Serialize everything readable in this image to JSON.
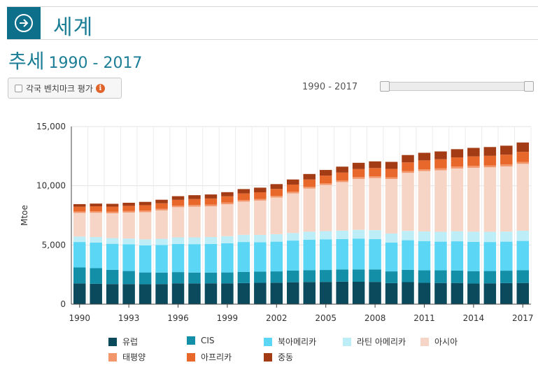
{
  "header": {
    "title": "세계",
    "nav_icon": "arrow-circle-right-icon"
  },
  "subtitle": {
    "main": "추세",
    "range": "1990 - 2017"
  },
  "controls": {
    "benchmark_label": "각국 벤치마크 평가",
    "info_icon": "info-icon",
    "range_label": "1990 - 2017",
    "slider_start": 1990,
    "slider_end": 2017,
    "slider_min": 1990,
    "slider_max": 2017
  },
  "colors": {
    "europe": "#0b4a5c",
    "cis": "#138fa8",
    "north_america": "#5bd6f5",
    "latin_america": "#bdeef8",
    "asia": "#f7d5c6",
    "pacific": "#f2976c",
    "africa": "#e8682c",
    "middle_east": "#a33b14"
  },
  "chart_data": {
    "type": "bar",
    "stacked": true,
    "ylabel": "Mtoe",
    "ylim": [
      0,
      15000
    ],
    "yticks": [
      "0",
      "5,000",
      "10,000",
      "15,000"
    ],
    "xticks": [
      "1990",
      "1993",
      "1996",
      "1999",
      "2002",
      "2005",
      "2008",
      "2011",
      "2014",
      "2017"
    ],
    "categories": [
      "1990",
      "1991",
      "1992",
      "1993",
      "1994",
      "1995",
      "1996",
      "1997",
      "1998",
      "1999",
      "2000",
      "2001",
      "2002",
      "2003",
      "2004",
      "2005",
      "2006",
      "2007",
      "2008",
      "2009",
      "2010",
      "2011",
      "2012",
      "2013",
      "2014",
      "2015",
      "2016",
      "2017"
    ],
    "grid": true,
    "legend_position": "bottom",
    "series": [
      {
        "name": "유럽",
        "color_key": "europe",
        "values": [
          1750,
          1720,
          1700,
          1700,
          1680,
          1700,
          1760,
          1750,
          1760,
          1760,
          1780,
          1800,
          1810,
          1850,
          1870,
          1880,
          1900,
          1890,
          1880,
          1780,
          1860,
          1800,
          1790,
          1790,
          1740,
          1760,
          1780,
          1790
        ]
      },
      {
        "name": "CIS",
        "color_key": "cis",
        "values": [
          1350,
          1320,
          1200,
          1100,
          1000,
          970,
          950,
          920,
          910,
          920,
          950,
          950,
          960,
          990,
          1000,
          1010,
          1030,
          1040,
          1050,
          990,
          1040,
          1060,
          1070,
          1050,
          1050,
          1040,
          1050,
          1080
        ]
      },
      {
        "name": "북아메리카",
        "color_key": "north_america",
        "values": [
          2150,
          2160,
          2200,
          2250,
          2280,
          2320,
          2380,
          2400,
          2410,
          2460,
          2520,
          2480,
          2510,
          2530,
          2580,
          2590,
          2570,
          2610,
          2560,
          2440,
          2500,
          2470,
          2420,
          2470,
          2470,
          2450,
          2450,
          2470
        ]
      },
      {
        "name": "라틴 아메리카",
        "color_key": "latin_america",
        "values": [
          460,
          470,
          480,
          490,
          510,
          530,
          550,
          570,
          590,
          600,
          610,
          620,
          630,
          640,
          670,
          690,
          710,
          740,
          760,
          760,
          790,
          810,
          830,
          850,
          860,
          860,
          850,
          860
        ]
      },
      {
        "name": "아시아",
        "color_key": "asia",
        "values": [
          2000,
          2050,
          2100,
          2200,
          2300,
          2400,
          2550,
          2600,
          2600,
          2700,
          2800,
          2900,
          3100,
          3350,
          3650,
          3900,
          4100,
          4300,
          4400,
          4600,
          4900,
          5100,
          5200,
          5300,
          5400,
          5450,
          5500,
          5650
        ]
      },
      {
        "name": "태평양",
        "color_key": "pacific",
        "values": [
          120,
          125,
          125,
          125,
          130,
          130,
          130,
          135,
          135,
          140,
          140,
          140,
          140,
          140,
          145,
          145,
          145,
          150,
          150,
          150,
          155,
          155,
          160,
          160,
          160,
          160,
          165,
          165
        ]
      },
      {
        "name": "아프리카",
        "color_key": "africa",
        "values": [
          400,
          420,
          430,
          440,
          460,
          470,
          490,
          500,
          520,
          530,
          550,
          560,
          580,
          600,
          620,
          640,
          660,
          680,
          700,
          710,
          730,
          750,
          770,
          780,
          800,
          810,
          830,
          850
        ]
      },
      {
        "name": "중동",
        "color_key": "middle_east",
        "values": [
          220,
          230,
          240,
          260,
          280,
          300,
          310,
          330,
          340,
          350,
          370,
          390,
          410,
          430,
          460,
          480,
          500,
          530,
          560,
          590,
          620,
          640,
          660,
          690,
          720,
          740,
          760,
          790
        ]
      }
    ]
  }
}
